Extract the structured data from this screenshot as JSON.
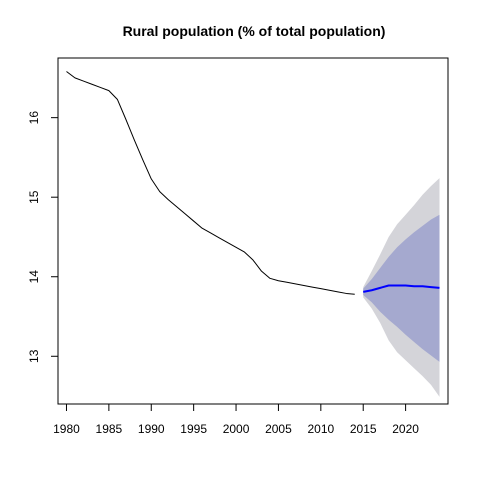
{
  "chart_data": {
    "type": "line",
    "title": "Rural population (% of total population)",
    "xlabel": "",
    "ylabel": "",
    "xlim": [
      1979,
      2025
    ],
    "ylim": [
      12.4,
      16.75
    ],
    "x_ticks": [
      1980,
      1985,
      1990,
      1995,
      2000,
      2005,
      2010,
      2015,
      2020
    ],
    "y_ticks": [
      13,
      14,
      15,
      16
    ],
    "grid": false,
    "legend": "none",
    "colors": {
      "history": "#000000",
      "forecast": "#0000ff",
      "band_outer": "#d4d4d9",
      "band_inner": "#a5a9cf",
      "frame": "#000000"
    },
    "series": [
      {
        "role": "history",
        "x": [
          1980,
          1981,
          1982,
          1983,
          1984,
          1985,
          1986,
          1987,
          1988,
          1989,
          1990,
          1991,
          1992,
          1993,
          1994,
          1995,
          1996,
          1997,
          1998,
          1999,
          2000,
          2001,
          2002,
          2003,
          2004,
          2005,
          2006,
          2007,
          2008,
          2009,
          2010,
          2011,
          2012,
          2013,
          2014
        ],
        "y": [
          16.58,
          16.5,
          16.46,
          16.42,
          16.38,
          16.34,
          16.23,
          15.98,
          15.72,
          15.47,
          15.23,
          15.07,
          14.97,
          14.88,
          14.79,
          14.7,
          14.61,
          14.55,
          14.49,
          14.43,
          14.37,
          14.31,
          14.21,
          14.07,
          13.98,
          13.95,
          13.93,
          13.91,
          13.89,
          13.87,
          13.85,
          13.83,
          13.81,
          13.79,
          13.78
        ]
      },
      {
        "role": "forecast",
        "x": [
          2015,
          2016,
          2017,
          2018,
          2019,
          2020,
          2021,
          2022,
          2023,
          2024
        ],
        "y": [
          13.81,
          13.83,
          13.86,
          13.89,
          13.89,
          13.89,
          13.88,
          13.88,
          13.87,
          13.86
        ],
        "lower_80": [
          13.77,
          13.68,
          13.56,
          13.46,
          13.37,
          13.27,
          13.18,
          13.09,
          13.01,
          12.93
        ],
        "upper_80": [
          13.85,
          13.97,
          14.11,
          14.25,
          14.37,
          14.47,
          14.56,
          14.64,
          14.72,
          14.78
        ],
        "lower_95": [
          13.74,
          13.6,
          13.42,
          13.2,
          13.05,
          12.95,
          12.85,
          12.75,
          12.64,
          12.49
        ],
        "upper_95": [
          13.87,
          14.07,
          14.28,
          14.5,
          14.66,
          14.78,
          14.9,
          15.03,
          15.14,
          15.24
        ]
      }
    ]
  }
}
